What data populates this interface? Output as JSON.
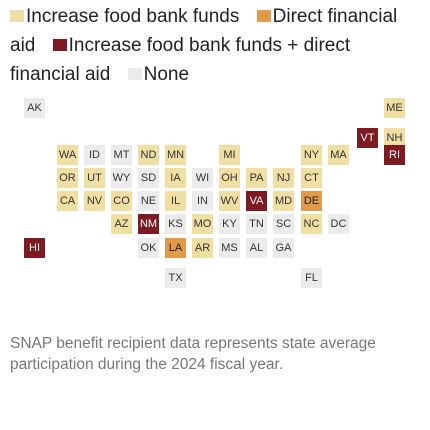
{
  "legend": {
    "items": [
      {
        "label": "Increase food bank funds",
        "color": "#f0dfa3"
      },
      {
        "label": "Direct financial aid",
        "color": "#e09a4a"
      },
      {
        "label": "Increase food bank funds + direct financial aid",
        "color": "#7e1a22"
      },
      {
        "label": "None",
        "color": "#ebebeb"
      }
    ]
  },
  "states": [
    {
      "abbr": "AK",
      "category": "None"
    },
    {
      "abbr": "ME",
      "category": "Increase food bank funds"
    },
    {
      "abbr": "VT",
      "category": "Increase food bank funds + direct financial aid"
    },
    {
      "abbr": "NH",
      "category": "Increase food bank funds"
    },
    {
      "abbr": "WA",
      "category": "Increase food bank funds"
    },
    {
      "abbr": "ID",
      "category": "None"
    },
    {
      "abbr": "MT",
      "category": "None"
    },
    {
      "abbr": "ND",
      "category": "Increase food bank funds"
    },
    {
      "abbr": "MN",
      "category": "Increase food bank funds"
    },
    {
      "abbr": "MI",
      "category": "Increase food bank funds"
    },
    {
      "abbr": "NY",
      "category": "Increase food bank funds"
    },
    {
      "abbr": "MA",
      "category": "Increase food bank funds"
    },
    {
      "abbr": "RI",
      "category": "Increase food bank funds + direct financial aid"
    },
    {
      "abbr": "OR",
      "category": "Increase food bank funds"
    },
    {
      "abbr": "UT",
      "category": "Increase food bank funds"
    },
    {
      "abbr": "WY",
      "category": "None"
    },
    {
      "abbr": "SD",
      "category": "None"
    },
    {
      "abbr": "IA",
      "category": "Increase food bank funds"
    },
    {
      "abbr": "WI",
      "category": "None"
    },
    {
      "abbr": "OH",
      "category": "Increase food bank funds"
    },
    {
      "abbr": "PA",
      "category": "Increase food bank funds"
    },
    {
      "abbr": "NJ",
      "category": "Increase food bank funds"
    },
    {
      "abbr": "CT",
      "category": "Increase food bank funds"
    },
    {
      "abbr": "CA",
      "category": "Increase food bank funds"
    },
    {
      "abbr": "NV",
      "category": "Increase food bank funds"
    },
    {
      "abbr": "CO",
      "category": "Increase food bank funds"
    },
    {
      "abbr": "NE",
      "category": "None"
    },
    {
      "abbr": "IL",
      "category": "Increase food bank funds"
    },
    {
      "abbr": "IN",
      "category": "None"
    },
    {
      "abbr": "WV",
      "category": "Increase food bank funds"
    },
    {
      "abbr": "VA",
      "category": "Increase food bank funds + direct financial aid"
    },
    {
      "abbr": "MD",
      "category": "Increase food bank funds"
    },
    {
      "abbr": "DE",
      "category": "Direct financial aid"
    },
    {
      "abbr": "AZ",
      "category": "Increase food bank funds"
    },
    {
      "abbr": "NM",
      "category": "Increase food bank funds + direct financial aid"
    },
    {
      "abbr": "KS",
      "category": "None"
    },
    {
      "abbr": "MO",
      "category": "Increase food bank funds"
    },
    {
      "abbr": "KY",
      "category": "None"
    },
    {
      "abbr": "TN",
      "category": "None"
    },
    {
      "abbr": "SC",
      "category": "None"
    },
    {
      "abbr": "NC",
      "category": "Increase food bank funds"
    },
    {
      "abbr": "DC",
      "category": "None"
    },
    {
      "abbr": "HI",
      "category": "Increase food bank funds + direct financial aid"
    },
    {
      "abbr": "OK",
      "category": "None"
    },
    {
      "abbr": "LA",
      "category": "Direct financial aid"
    },
    {
      "abbr": "AR",
      "category": "Increase food bank funds"
    },
    {
      "abbr": "MS",
      "category": "None"
    },
    {
      "abbr": "AL",
      "category": "None"
    },
    {
      "abbr": "GA",
      "category": "None"
    },
    {
      "abbr": "TX",
      "category": "None"
    },
    {
      "abbr": "FL",
      "category": "None"
    }
  ],
  "note": "SNAP benefit recipient data represents state average participation during the 2024 fiscal year."
}
